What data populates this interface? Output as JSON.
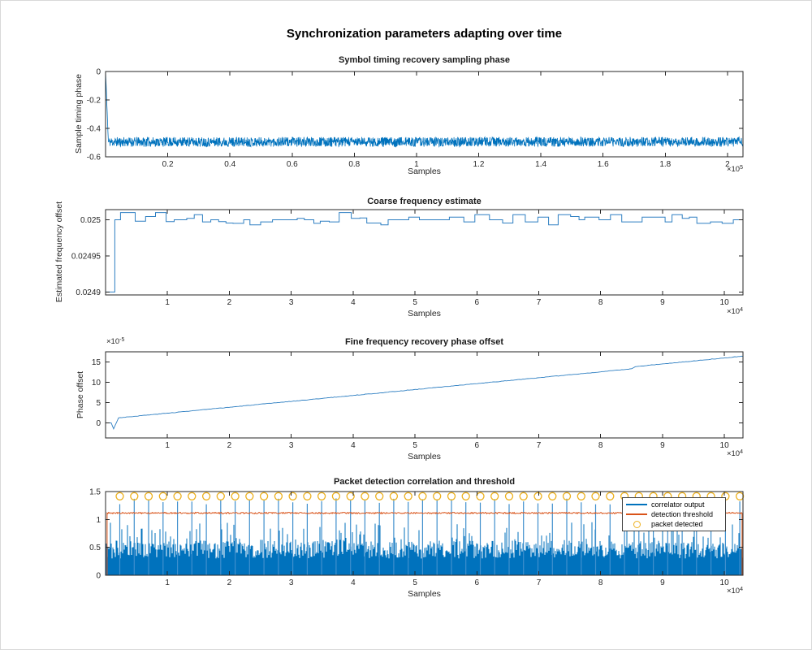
{
  "figure": {
    "title": "Synchronization parameters adapting over time",
    "background": "#ffffff"
  },
  "colors": {
    "blue": "#0072BD",
    "light_blue": "#2e7fc2",
    "spike_blue": "#3f8fcd",
    "orange": "#D95319",
    "gold": "#EDB120",
    "axis": "#262626",
    "tick": "#262626",
    "title": "#000000"
  },
  "chart_data": [
    {
      "type": "line",
      "title": "Symbol timing recovery sampling phase",
      "xlabel": "Samples",
      "ylabel": "Sample timing phase",
      "x_exp_base": "×10",
      "x_exp_power": "5",
      "xlim": [
        0,
        205000
      ],
      "ylim": [
        -0.6,
        0
      ],
      "x_tick_values": [
        20000,
        40000,
        60000,
        80000,
        100000,
        120000,
        140000,
        160000,
        180000,
        200000
      ],
      "x_tick_labels": [
        "0.2",
        "0.4",
        "0.6",
        "0.8",
        "1",
        "1.2",
        "1.4",
        "1.6",
        "1.8",
        "2"
      ],
      "y_tick_values": [
        0,
        -0.2,
        -0.4,
        -0.6
      ],
      "y_tick_labels": [
        "0",
        "-0.2",
        "-0.4",
        "-0.6"
      ],
      "grid": false,
      "series": [
        {
          "name": "sample timing phase",
          "kind": "noisy_settle",
          "seed": 11,
          "points": 2400,
          "start": 0,
          "settle": -0.495,
          "settle_x": 900,
          "noise": 0.068,
          "color": "#0072BD",
          "width": 0.8
        }
      ]
    },
    {
      "type": "line",
      "title": "Coarse frequency estimate",
      "xlabel": "Samples",
      "ylabel": "Estimated frequency offset",
      "x_exp_base": "×10",
      "x_exp_power": "4",
      "xlim": [
        0,
        103000
      ],
      "ylim": [
        0.024896,
        0.025014
      ],
      "x_tick_values": [
        10000,
        20000,
        30000,
        40000,
        50000,
        60000,
        70000,
        80000,
        90000,
        100000
      ],
      "x_tick_labels": [
        "1",
        "2",
        "3",
        "4",
        "5",
        "6",
        "7",
        "8",
        "9",
        "10"
      ],
      "y_tick_values": [
        0.0249,
        0.02495,
        0.025
      ],
      "y_tick_labels": [
        "0.0249",
        "0.02495",
        "0.025"
      ],
      "grid": false,
      "series": [
        {
          "name": "coarse frequency estimate",
          "kind": "steps",
          "seed": 7,
          "initial": 0.0249,
          "rise_x": 1500,
          "base": 0.025,
          "unit": 1e-05,
          "levels": [
            0,
            0.25,
            -0.25,
            0.45,
            -0.45,
            0.2,
            -0.2,
            0,
            0.7,
            -0.7,
            1.0,
            -0.5,
            0.35,
            0,
            -0.3
          ],
          "min_w": 900,
          "max_w": 2400,
          "color": "#2e7fc2",
          "width": 1
        }
      ]
    },
    {
      "type": "line",
      "title": "Fine frequency recovery phase offset",
      "xlabel": "Samples",
      "ylabel": "Phase offset",
      "x_exp_base": "×10",
      "x_exp_power": "4",
      "y_exp_base": "×10",
      "y_exp_power": "-5",
      "xlim": [
        0,
        103000
      ],
      "ylim": [
        -3.7,
        17.5
      ],
      "x_tick_values": [
        10000,
        20000,
        30000,
        40000,
        50000,
        60000,
        70000,
        80000,
        90000,
        100000
      ],
      "x_tick_labels": [
        "1",
        "2",
        "3",
        "4",
        "5",
        "6",
        "7",
        "8",
        "9",
        "10"
      ],
      "y_tick_values": [
        0,
        5,
        10,
        15
      ],
      "y_tick_labels": [
        "0",
        "5",
        "10",
        "15"
      ],
      "grid": false,
      "series": [
        {
          "name": "phase offset (×1e-5)",
          "kind": "path",
          "seed": 3,
          "noise": 0.12,
          "points": [
            [
              0,
              0
            ],
            [
              900,
              0
            ],
            [
              1300,
              -1.45
            ],
            [
              2100,
              1.25
            ],
            [
              85000,
              13.3
            ],
            [
              85600,
              13.85
            ],
            [
              103000,
              16.45
            ]
          ],
          "color": "#2e7fc2",
          "width": 0.9
        }
      ]
    },
    {
      "type": "line",
      "title": "Packet detection correlation and threshold",
      "xlabel": "Samples",
      "x_exp_base": "×10",
      "x_exp_power": "4",
      "xlim": [
        0,
        103000
      ],
      "ylim": [
        0,
        1.5
      ],
      "x_tick_values": [
        10000,
        20000,
        30000,
        40000,
        50000,
        60000,
        70000,
        80000,
        90000,
        100000
      ],
      "x_tick_labels": [
        "1",
        "2",
        "3",
        "4",
        "5",
        "6",
        "7",
        "8",
        "9",
        "10"
      ],
      "y_tick_values": [
        0,
        0.5,
        1,
        1.5
      ],
      "y_tick_labels": [
        "0",
        "0.5",
        "1",
        "1.5"
      ],
      "grid": false,
      "legend": {
        "position": "top-right",
        "entries": [
          {
            "swatch": "line",
            "color": "#0072BD",
            "label": "correlator output"
          },
          {
            "swatch": "line",
            "color": "#D95319",
            "label": "detection threshold"
          },
          {
            "swatch": "circle",
            "color": "#EDB120",
            "label": "packet detected"
          }
        ]
      },
      "series": [
        {
          "name": "correlator noise floor",
          "kind": "noise_fill",
          "seed": 44,
          "base_min": 0.3,
          "base_max": 0.62,
          "tall_chance": 0.12,
          "tall_max": 0.95,
          "color": "#0072BD"
        },
        {
          "name": "correlation peaks",
          "kind": "spikes",
          "seed": 45,
          "first": 2300,
          "period": 2330,
          "count": 44,
          "peak_min": 1.27,
          "peak_max": 1.38,
          "color": "#3f8fcd",
          "width": 1.2
        },
        {
          "name": "detection threshold",
          "kind": "noisy_line",
          "seed": 46,
          "rise_x": 250,
          "drop_x": 102850,
          "value": 1.115,
          "noise": 0.013,
          "points": 900,
          "color": "#D95319",
          "width": 1
        },
        {
          "name": "packet detected markers",
          "kind": "markers",
          "first": 2300,
          "period": 2330,
          "count": 44,
          "y": 1.415,
          "radius": 4.5,
          "color": "#EDB120",
          "width": 1.3
        }
      ]
    }
  ]
}
